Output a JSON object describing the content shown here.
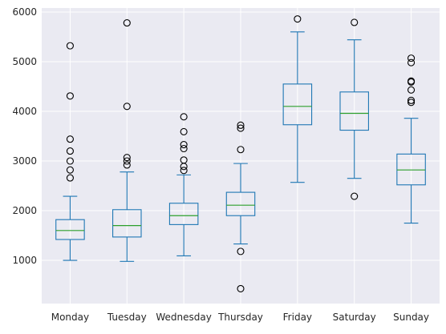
{
  "chart_data": {
    "type": "boxplot",
    "title": "",
    "xlabel": "",
    "ylabel": "",
    "ylim": [
      130,
      6080
    ],
    "yticks": [
      1000,
      2000,
      3000,
      4000,
      5000,
      6000
    ],
    "ytick_labels": [
      "1000",
      "2000",
      "3000",
      "4000",
      "5000",
      "6000"
    ],
    "grid": true,
    "categories": [
      "Monday",
      "Tuesday",
      "Wednesday",
      "Thursday",
      "Friday",
      "Saturday",
      "Sunday"
    ],
    "boxes": [
      {
        "category": "Monday",
        "whisker_low": 1000,
        "q1": 1420,
        "median": 1600,
        "q3": 1820,
        "whisker_high": 2290,
        "outliers": [
          2660,
          2820,
          3000,
          3200,
          3440,
          4310,
          5320
        ]
      },
      {
        "category": "Tuesday",
        "whisker_low": 980,
        "q1": 1470,
        "median": 1700,
        "q3": 2020,
        "whisker_high": 2780,
        "outliers": [
          2920,
          3000,
          3070,
          4100,
          5780
        ]
      },
      {
        "category": "Wednesday",
        "whisker_low": 1090,
        "q1": 1720,
        "median": 1900,
        "q3": 2150,
        "whisker_high": 2720,
        "outliers": [
          2810,
          2890,
          3020,
          3250,
          3330,
          3590,
          3890
        ]
      },
      {
        "category": "Thursday",
        "whisker_low": 1330,
        "q1": 1900,
        "median": 2110,
        "q3": 2370,
        "whisker_high": 2950,
        "outliers": [
          430,
          1180,
          3230,
          3660,
          3720
        ]
      },
      {
        "category": "Friday",
        "whisker_low": 2570,
        "q1": 3730,
        "median": 4100,
        "q3": 4550,
        "whisker_high": 5600,
        "outliers": [
          5860
        ]
      },
      {
        "category": "Saturday",
        "whisker_low": 2650,
        "q1": 3620,
        "median": 3960,
        "q3": 4390,
        "whisker_high": 5440,
        "outliers": [
          2290,
          5790
        ]
      },
      {
        "category": "Sunday",
        "whisker_low": 1750,
        "q1": 2520,
        "median": 2820,
        "q3": 3140,
        "whisker_high": 3860,
        "outliers": [
          4180,
          4220,
          4430,
          4590,
          4610,
          4980,
          5070
        ]
      }
    ],
    "colors": {
      "box": "#1f77b4",
      "median": "#2ca02c",
      "flier": "#000000",
      "background": "#eaeaf2",
      "grid": "#ffffff",
      "text": "#262626"
    }
  }
}
